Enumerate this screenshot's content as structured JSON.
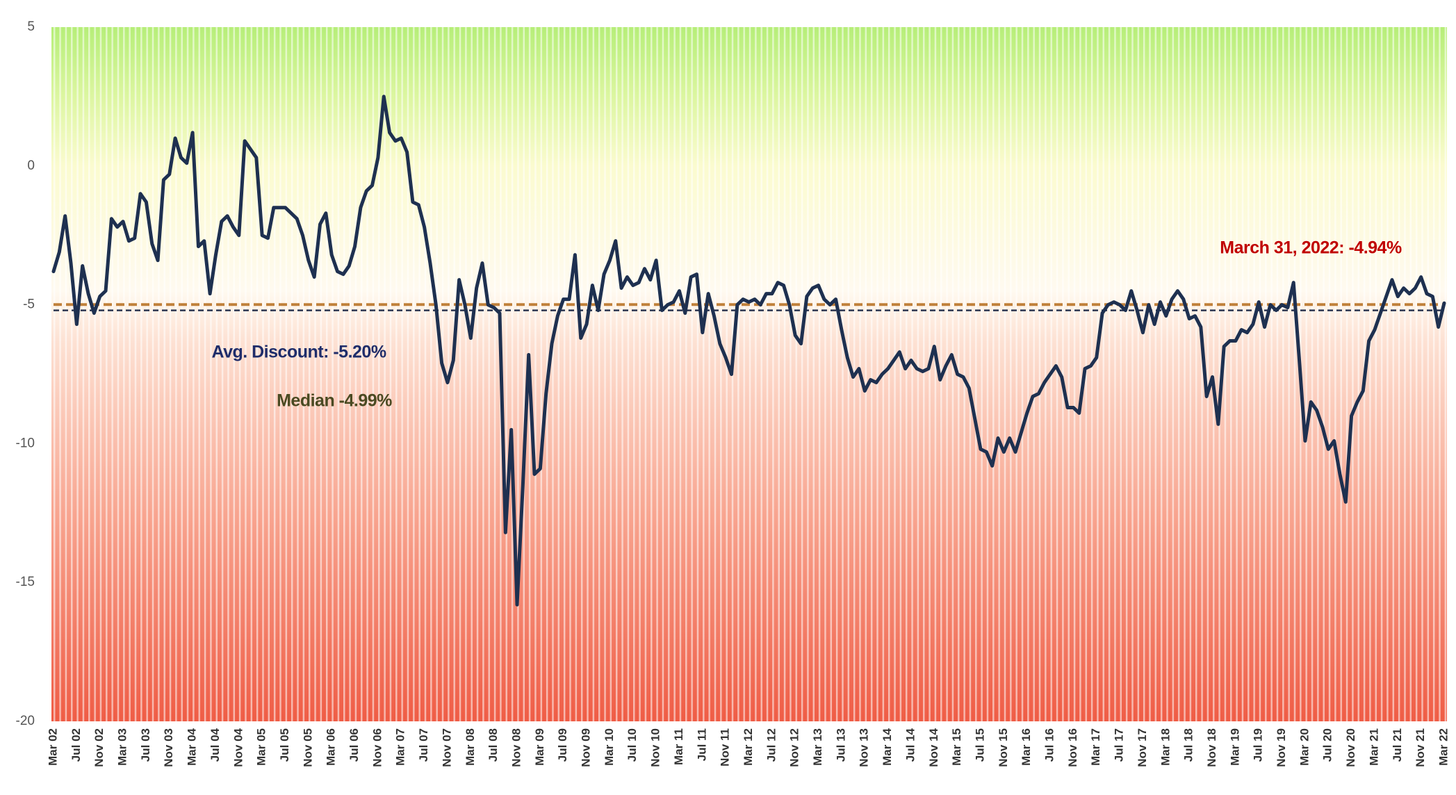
{
  "chart_data": {
    "type": "line",
    "categories": [
      "Mar 02",
      null,
      null,
      null,
      "Jul 02",
      null,
      null,
      null,
      "Nov 02",
      null,
      null,
      null,
      "Mar 03",
      null,
      null,
      null,
      "Jul 03",
      null,
      null,
      null,
      "Nov 03",
      null,
      null,
      null,
      "Mar 04",
      null,
      null,
      null,
      "Jul 04",
      null,
      null,
      null,
      "Nov 04",
      null,
      null,
      null,
      "Mar 05",
      null,
      null,
      null,
      "Jul 05",
      null,
      null,
      null,
      "Nov 05",
      null,
      null,
      null,
      "Mar 06",
      null,
      null,
      null,
      "Jul 06",
      null,
      null,
      null,
      "Nov 06",
      null,
      null,
      null,
      "Mar 07",
      null,
      null,
      null,
      "Jul 07",
      null,
      null,
      null,
      "Nov 07",
      null,
      null,
      null,
      "Mar 08",
      null,
      null,
      null,
      "Jul 08",
      null,
      null,
      null,
      "Nov 08",
      null,
      null,
      null,
      "Mar 09",
      null,
      null,
      null,
      "Jul 09",
      null,
      null,
      null,
      "Nov 09",
      null,
      null,
      null,
      "Mar 10",
      null,
      null,
      null,
      "Jul 10",
      null,
      null,
      null,
      "Nov 10",
      null,
      null,
      null,
      "Mar 11",
      null,
      null,
      null,
      "Jul 11",
      null,
      null,
      null,
      "Nov 11",
      null,
      null,
      null,
      "Mar 12",
      null,
      null,
      null,
      "Jul 12",
      null,
      null,
      null,
      "Nov 12",
      null,
      null,
      null,
      "Mar 13",
      null,
      null,
      null,
      "Jul 13",
      null,
      null,
      null,
      "Nov 13",
      null,
      null,
      null,
      "Mar 14",
      null,
      null,
      null,
      "Jul 14",
      null,
      null,
      null,
      "Nov 14",
      null,
      null,
      null,
      "Mar 15",
      null,
      null,
      null,
      "Jul 15",
      null,
      null,
      null,
      "Nov 15",
      null,
      null,
      null,
      "Mar 16",
      null,
      null,
      null,
      "Jul 16",
      null,
      null,
      null,
      "Nov 16",
      null,
      null,
      null,
      "Mar 17",
      null,
      null,
      null,
      "Jul 17",
      null,
      null,
      null,
      "Nov 17",
      null,
      null,
      null,
      "Mar 18",
      null,
      null,
      null,
      "Jul 18",
      null,
      null,
      null,
      "Nov 18",
      null,
      null,
      null,
      "Mar 19",
      null,
      null,
      null,
      "Jul 19",
      null,
      null,
      null,
      "Nov 19",
      null,
      null,
      null,
      "Mar 20",
      null,
      null,
      null,
      "Jul 20",
      null,
      null,
      null,
      "Nov 20",
      null,
      null,
      null,
      "Mar 21",
      null,
      null,
      null,
      "Jul 21",
      null,
      null,
      null,
      "Nov 21",
      null,
      null,
      null,
      "Mar 22"
    ],
    "values": [
      -3.8,
      -3.1,
      -1.8,
      -3.5,
      -5.7,
      -3.6,
      -4.6,
      -5.3,
      -4.7,
      -4.5,
      -1.9,
      -2.2,
      -2.0,
      -2.7,
      -2.6,
      -1.0,
      -1.3,
      -2.8,
      -3.4,
      -0.5,
      -0.3,
      1.0,
      0.3,
      0.1,
      1.2,
      -2.9,
      -2.7,
      -4.6,
      -3.2,
      -2.0,
      -1.8,
      -2.2,
      -2.5,
      0.9,
      0.6,
      0.3,
      -2.5,
      -2.6,
      -1.5,
      -1.5,
      -1.5,
      -1.7,
      -1.9,
      -2.5,
      -3.4,
      -4.0,
      -2.1,
      -1.7,
      -3.2,
      -3.8,
      -3.9,
      -3.6,
      -2.9,
      -1.5,
      -0.9,
      -0.7,
      0.3,
      2.5,
      1.2,
      0.9,
      1.0,
      0.5,
      -1.3,
      -1.4,
      -2.2,
      -3.5,
      -5.0,
      -7.1,
      -7.8,
      -7.0,
      -4.1,
      -5.0,
      -6.2,
      -4.4,
      -3.5,
      -5.0,
      -5.1,
      -5.3,
      -13.2,
      -9.5,
      -15.8,
      -11.5,
      -6.8,
      -11.1,
      -10.9,
      -8.2,
      -6.4,
      -5.4,
      -4.8,
      -4.8,
      -3.2,
      -6.2,
      -5.7,
      -4.3,
      -5.2,
      -3.9,
      -3.4,
      -2.7,
      -4.4,
      -4.0,
      -4.3,
      -4.2,
      -3.7,
      -4.1,
      -3.4,
      -5.2,
      -5.0,
      -4.9,
      -4.5,
      -5.3,
      -4.0,
      -3.9,
      -6.0,
      -4.6,
      -5.4,
      -6.4,
      -6.9,
      -7.5,
      -5.0,
      -4.8,
      -4.9,
      -4.8,
      -5.0,
      -4.6,
      -4.6,
      -4.2,
      -4.3,
      -5.0,
      -6.1,
      -6.4,
      -4.7,
      -4.4,
      -4.3,
      -4.8,
      -5.0,
      -4.8,
      -5.9,
      -6.9,
      -7.6,
      -7.3,
      -8.1,
      -7.7,
      -7.8,
      -7.5,
      -7.3,
      -7.0,
      -6.7,
      -7.3,
      -7.0,
      -7.3,
      -7.4,
      -7.3,
      -6.5,
      -7.7,
      -7.2,
      -6.8,
      -7.5,
      -7.6,
      -8.0,
      -9.1,
      -10.2,
      -10.3,
      -10.8,
      -9.8,
      -10.3,
      -9.8,
      -10.3,
      -9.6,
      -8.9,
      -8.3,
      -8.2,
      -7.8,
      -7.5,
      -7.2,
      -7.6,
      -8.7,
      -8.7,
      -8.9,
      -7.3,
      -7.2,
      -6.9,
      -5.3,
      -5.0,
      -4.9,
      -5.0,
      -5.2,
      -4.5,
      -5.2,
      -6.0,
      -5.0,
      -5.7,
      -4.9,
      -5.4,
      -4.8,
      -4.5,
      -4.8,
      -5.5,
      -5.4,
      -5.8,
      -8.3,
      -7.6,
      -9.3,
      -6.5,
      -6.3,
      -6.3,
      -5.9,
      -6.0,
      -5.7,
      -4.9,
      -5.8,
      -5.0,
      -5.2,
      -5.0,
      -5.1,
      -4.2,
      -7.0,
      -9.9,
      -8.5,
      -8.8,
      -9.4,
      -10.2,
      -9.9,
      -11.1,
      -12.1,
      -9.0,
      -8.5,
      -8.1,
      -6.3,
      -5.9,
      -5.3,
      -4.7,
      -4.1,
      -4.7,
      -4.4,
      -4.6,
      -4.4,
      -4.0,
      -4.6,
      -4.7,
      -5.8,
      -4.94
    ],
    "color": "#1e3050",
    "ylim": [
      -20,
      5
    ],
    "yticks": [
      -20,
      -15,
      -10,
      -5,
      0,
      5
    ],
    "grid": false,
    "reference_lines": [
      {
        "value": -4.99,
        "color": "#c0803a",
        "style": "dashed"
      },
      {
        "value": -5.2,
        "color": "#2b3550",
        "style": "dashed"
      }
    ],
    "annotations": [
      {
        "text": "Avg. Discount: -5.20%",
        "color": "#1f2d6a"
      },
      {
        "text": "Median  -4.99%",
        "color": "#4a4a22"
      },
      {
        "text": "March 31, 2022: -4.94%",
        "color": "#c00000"
      }
    ]
  }
}
